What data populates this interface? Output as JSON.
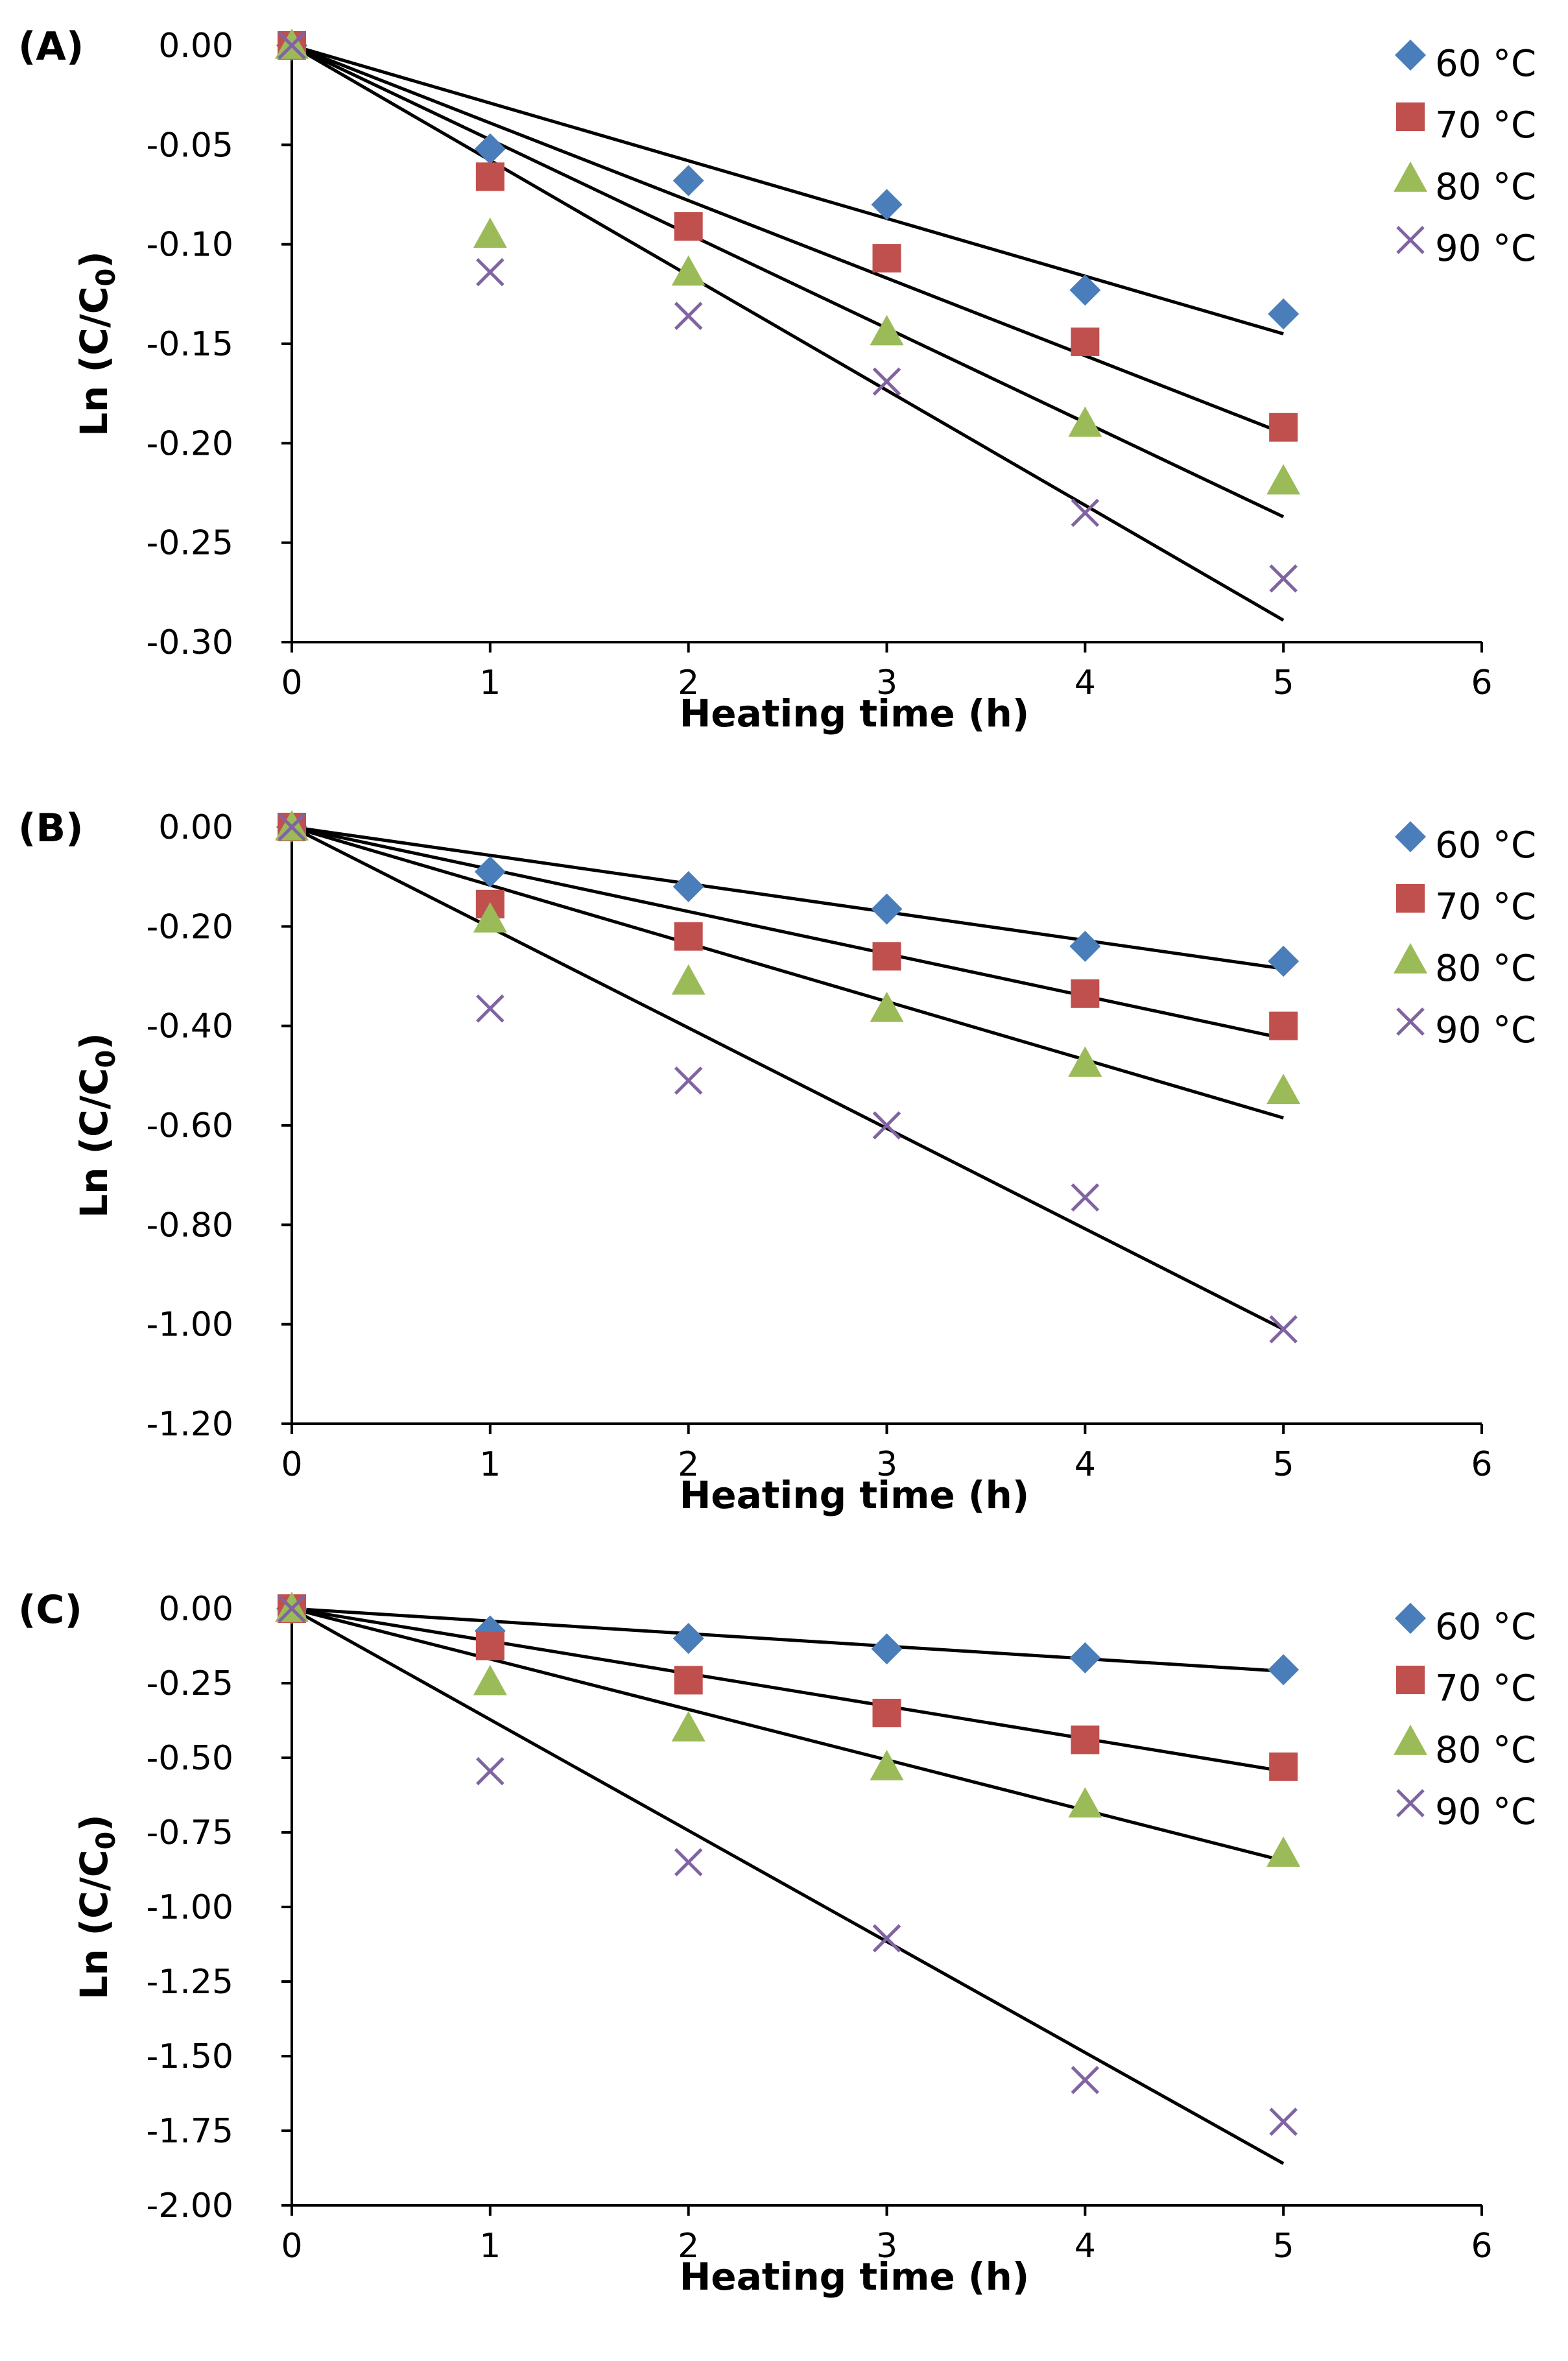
{
  "figure": {
    "panels": [
      "(A)",
      "(B)",
      "(C)"
    ]
  },
  "chart_data": [
    {
      "type": "scatter",
      "panel_label": "(A)",
      "xlabel": "Heating time (h)",
      "ylabel": "Ln (C/C0)",
      "ylabel_main": "Ln (C/C",
      "ylabel_sub": "0",
      "ylabel_close": ")",
      "xlim": [
        0,
        6
      ],
      "ylim": [
        -0.3,
        0.0
      ],
      "x_ticks": [
        0,
        1,
        2,
        3,
        4,
        5,
        6
      ],
      "x_tick_labels": [
        "0",
        "1",
        "2",
        "3",
        "4",
        "5",
        "6"
      ],
      "y_ticks": [
        0.0,
        -0.05,
        -0.1,
        -0.15,
        -0.2,
        -0.25,
        -0.3
      ],
      "y_tick_labels": [
        "0.00",
        "-0.05",
        "-0.10",
        "-0.15",
        "-0.20",
        "-0.25",
        "-0.30"
      ],
      "grid": false,
      "legend_position": "top-right",
      "x": [
        0,
        1,
        2,
        3,
        4,
        5
      ],
      "series": [
        {
          "name": "60 °C",
          "marker": "diamond",
          "color": "#4a7ebb",
          "values": [
            0,
            -0.052,
            -0.068,
            -0.08,
            -0.123,
            -0.135
          ],
          "fit_end": -0.145
        },
        {
          "name": "70 °C",
          "marker": "square",
          "color": "#c0504d",
          "values": [
            0,
            -0.066,
            -0.091,
            -0.107,
            -0.149,
            -0.192
          ],
          "fit_end": -0.195
        },
        {
          "name": "80 °C",
          "marker": "triangle",
          "color": "#9bbb59",
          "values": [
            0,
            -0.095,
            -0.114,
            -0.144,
            -0.19,
            -0.219
          ],
          "fit_end": -0.237
        },
        {
          "name": "90 °C",
          "marker": "cross",
          "color": "#8064a2",
          "values": [
            0,
            -0.114,
            -0.136,
            -0.169,
            -0.235,
            -0.268
          ],
          "fit_end": -0.289
        }
      ]
    },
    {
      "type": "scatter",
      "panel_label": "(B)",
      "xlabel": "Heating time (h)",
      "ylabel": "Ln (C/C0)",
      "ylabel_main": "Ln (C/C",
      "ylabel_sub": "0",
      "ylabel_close": ")",
      "xlim": [
        0,
        6
      ],
      "ylim": [
        -1.2,
        0.0
      ],
      "x_ticks": [
        0,
        1,
        2,
        3,
        4,
        5,
        6
      ],
      "x_tick_labels": [
        "0",
        "1",
        "2",
        "3",
        "4",
        "5",
        "6"
      ],
      "y_ticks": [
        0.0,
        -0.2,
        -0.4,
        -0.6,
        -0.8,
        -1.0,
        -1.2
      ],
      "y_tick_labels": [
        "0.00",
        "-0.20",
        "-0.40",
        "-0.60",
        "-0.80",
        "-1.00",
        "-1.20"
      ],
      "grid": false,
      "legend_position": "top-right",
      "x": [
        0,
        1,
        2,
        3,
        4,
        5
      ],
      "series": [
        {
          "name": "60 °C",
          "marker": "diamond",
          "color": "#4a7ebb",
          "values": [
            0,
            -0.09,
            -0.12,
            -0.165,
            -0.24,
            -0.27
          ],
          "fit_end": -0.285
        },
        {
          "name": "70 °C",
          "marker": "square",
          "color": "#c0504d",
          "values": [
            0,
            -0.155,
            -0.22,
            -0.26,
            -0.335,
            -0.4
          ],
          "fit_end": -0.425
        },
        {
          "name": "80 °C",
          "marker": "triangle",
          "color": "#9bbb59",
          "values": [
            0,
            -0.185,
            -0.31,
            -0.365,
            -0.475,
            -0.53
          ],
          "fit_end": -0.585
        },
        {
          "name": "90 °C",
          "marker": "cross",
          "color": "#8064a2",
          "values": [
            0,
            -0.365,
            -0.51,
            -0.6,
            -0.745,
            -1.01
          ],
          "fit_end": -1.01
        }
      ]
    },
    {
      "type": "scatter",
      "panel_label": "(C)",
      "xlabel": "Heating time (h)",
      "ylabel": "Ln (C/C0)",
      "ylabel_main": "Ln (C/C",
      "ylabel_sub": "0",
      "ylabel_close": ")",
      "xlim": [
        0,
        6
      ],
      "ylim": [
        -2.0,
        0.0
      ],
      "x_ticks": [
        0,
        1,
        2,
        3,
        4,
        5,
        6
      ],
      "x_tick_labels": [
        "0",
        "1",
        "2",
        "3",
        "4",
        "5",
        "6"
      ],
      "y_ticks": [
        0.0,
        -0.25,
        -0.5,
        -0.75,
        -1.0,
        -1.25,
        -1.5,
        -1.75,
        -2.0
      ],
      "y_tick_labels": [
        "0.00",
        "-0.25",
        "-0.50",
        "-0.75",
        "-1.00",
        "-1.25",
        "-1.50",
        "-1.75",
        "-2.00"
      ],
      "grid": false,
      "legend_position": "top-right",
      "x": [
        0,
        1,
        2,
        3,
        4,
        5
      ],
      "series": [
        {
          "name": "60 °C",
          "marker": "diamond",
          "color": "#4a7ebb",
          "values": [
            0,
            -0.075,
            -0.1,
            -0.135,
            -0.165,
            -0.205
          ],
          "fit_end": -0.21
        },
        {
          "name": "70 °C",
          "marker": "square",
          "color": "#c0504d",
          "values": [
            0,
            -0.125,
            -0.24,
            -0.35,
            -0.44,
            -0.53
          ],
          "fit_end": -0.545
        },
        {
          "name": "80 °C",
          "marker": "triangle",
          "color": "#9bbb59",
          "values": [
            0,
            -0.245,
            -0.4,
            -0.53,
            -0.655,
            -0.82
          ],
          "fit_end": -0.845
        },
        {
          "name": "90 °C",
          "marker": "cross",
          "color": "#8064a2",
          "values": [
            0,
            -0.545,
            -0.85,
            -1.105,
            -1.58,
            -1.72
          ],
          "fit_end": -1.86
        }
      ]
    }
  ]
}
